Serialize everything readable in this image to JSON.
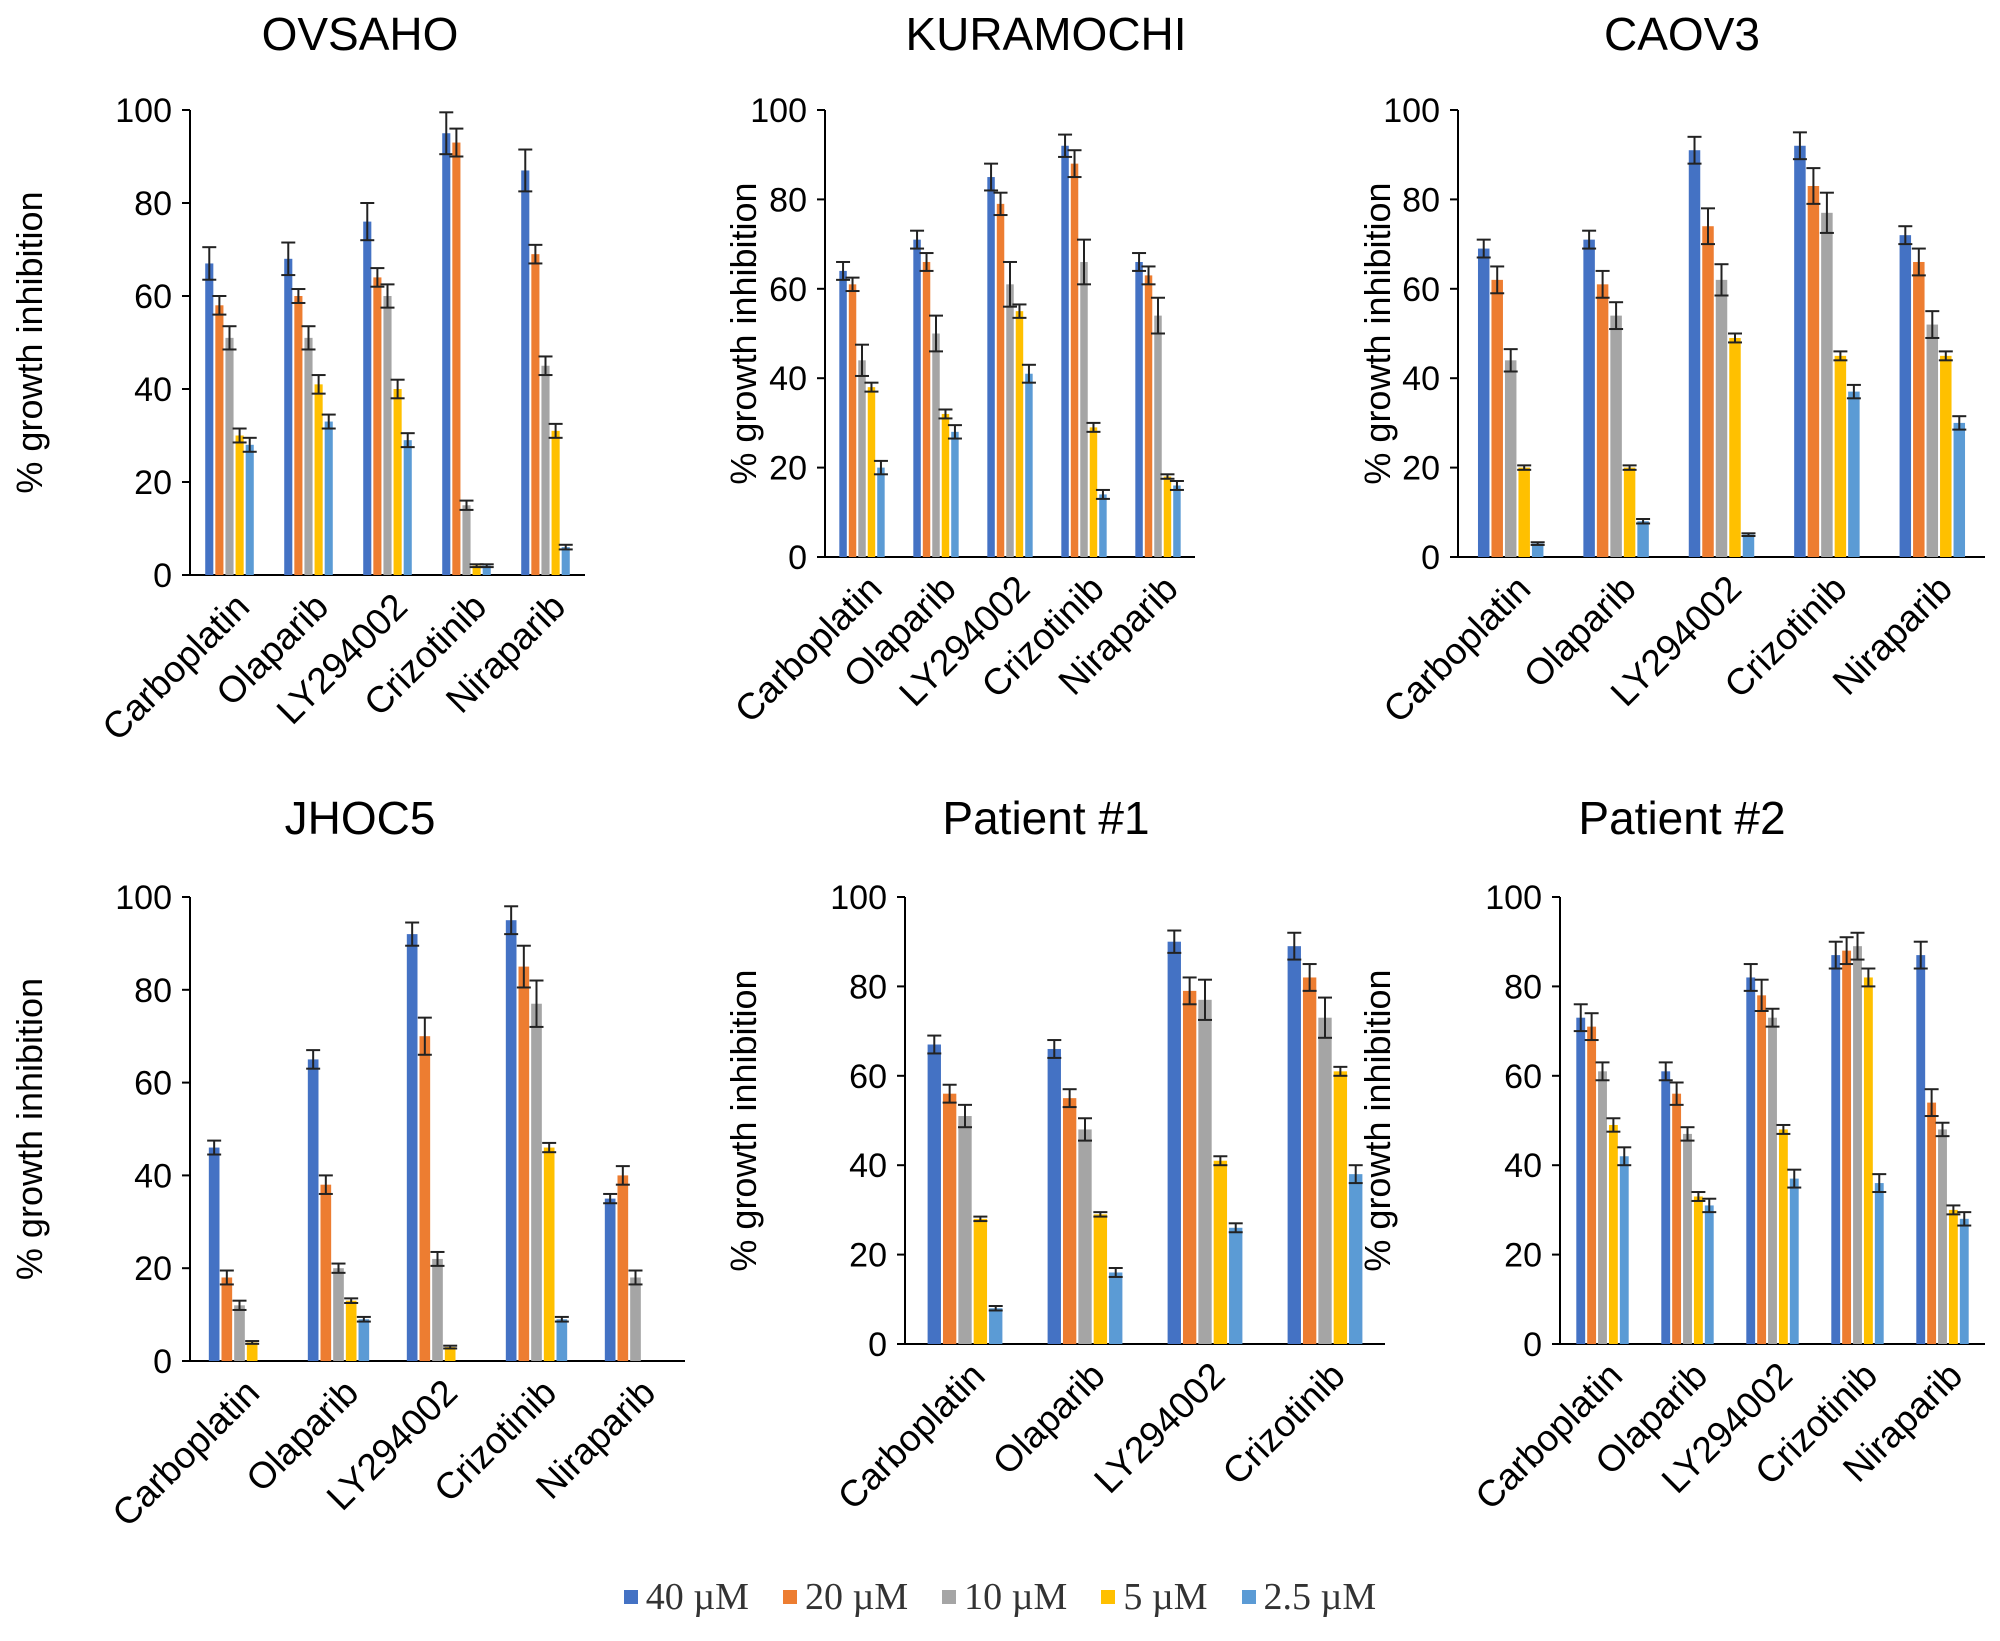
{
  "y_axis_label": "% growth inhibition",
  "legend": [
    {
      "label": "40 µM",
      "color": "#4472C4"
    },
    {
      "label": "20 µM",
      "color": "#ED7D31"
    },
    {
      "label": "10 µM",
      "color": "#A5A5A5"
    },
    {
      "label": "5 µM",
      "color": "#FFC000"
    },
    {
      "label": "2.5 µM",
      "color": "#5B9BD5"
    }
  ],
  "chart_data": [
    {
      "type": "bar",
      "title": "OVSAHO",
      "ylabel": "% growth inhibition",
      "ylim": [
        0,
        100
      ],
      "yticks": [
        0,
        20,
        40,
        60,
        80,
        100
      ],
      "categories": [
        "Carboplatin",
        "Olaparib",
        "LY294002",
        "Crizotinib",
        "Niraparib"
      ],
      "series": [
        {
          "name": "40 µM",
          "values": [
            67,
            68,
            76,
            95,
            87
          ],
          "errors": [
            3.5,
            3.5,
            4,
            4.5,
            4.5
          ]
        },
        {
          "name": "20 µM",
          "values": [
            58,
            60,
            64,
            93,
            69
          ],
          "errors": [
            2,
            1.5,
            2,
            3,
            2
          ]
        },
        {
          "name": "10 µM",
          "values": [
            51,
            51,
            60,
            15,
            45
          ],
          "errors": [
            2.5,
            2.5,
            2.5,
            1,
            2
          ]
        },
        {
          "name": "5 µM",
          "values": [
            30,
            41,
            40,
            2,
            31
          ],
          "errors": [
            1.5,
            2,
            2,
            0.3,
            1.5
          ]
        },
        {
          "name": "2.5 µM",
          "values": [
            28,
            33,
            29,
            2,
            6
          ],
          "errors": [
            1.5,
            1.5,
            1.5,
            0.3,
            0.5
          ]
        }
      ]
    },
    {
      "type": "bar",
      "title": "KURAMOCHI",
      "ylabel": "% growth inhibition",
      "ylim": [
        0,
        100
      ],
      "yticks": [
        0,
        20,
        40,
        60,
        80,
        100
      ],
      "categories": [
        "Carboplatin",
        "Olaparib",
        "LY294002",
        "Crizotinib",
        "Niraparib"
      ],
      "series": [
        {
          "name": "40 µM",
          "values": [
            64,
            71,
            85,
            92,
            66
          ],
          "errors": [
            2,
            2,
            3,
            2.5,
            2
          ]
        },
        {
          "name": "20 µM",
          "values": [
            61,
            66,
            79,
            88,
            63
          ],
          "errors": [
            1.5,
            2,
            2.5,
            3,
            2
          ]
        },
        {
          "name": "10 µM",
          "values": [
            44,
            50,
            61,
            66,
            54
          ],
          "errors": [
            3.5,
            4,
            5,
            5,
            4
          ]
        },
        {
          "name": "5 µM",
          "values": [
            38,
            32,
            55,
            29,
            18
          ],
          "errors": [
            1,
            1,
            1.5,
            1,
            0.5
          ]
        },
        {
          "name": "2.5 µM",
          "values": [
            20,
            28,
            41,
            14,
            16
          ],
          "errors": [
            1.5,
            1.5,
            2,
            1,
            1
          ]
        }
      ]
    },
    {
      "type": "bar",
      "title": "CAOV3",
      "ylabel": "% growth inhibition",
      "ylim": [
        0,
        100
      ],
      "yticks": [
        0,
        20,
        40,
        60,
        80,
        100
      ],
      "categories": [
        "Carboplatin",
        "Olaparib",
        "LY294002",
        "Crizotinib",
        "Niraparib"
      ],
      "series": [
        {
          "name": "40 µM",
          "values": [
            69,
            71,
            91,
            92,
            72
          ],
          "errors": [
            2,
            2,
            3,
            3,
            2
          ]
        },
        {
          "name": "20 µM",
          "values": [
            62,
            61,
            74,
            83,
            66
          ],
          "errors": [
            3,
            3,
            4,
            4,
            3
          ]
        },
        {
          "name": "10 µM",
          "values": [
            44,
            54,
            62,
            77,
            52
          ],
          "errors": [
            2.5,
            3,
            3.5,
            4.5,
            3
          ]
        },
        {
          "name": "5 µM",
          "values": [
            20,
            20,
            49,
            45,
            45
          ],
          "errors": [
            0.5,
            0.5,
            1,
            1,
            1
          ]
        },
        {
          "name": "2.5 µM",
          "values": [
            3,
            8,
            5,
            37,
            30
          ],
          "errors": [
            0.3,
            0.5,
            0.3,
            1.5,
            1.5
          ]
        }
      ]
    },
    {
      "type": "bar",
      "title": "JHOC5",
      "ylabel": "% growth inhibition",
      "ylim": [
        0,
        100
      ],
      "yticks": [
        0,
        20,
        40,
        60,
        80,
        100
      ],
      "categories": [
        "Carboplatin",
        "Olaparib",
        "LY294002",
        "Crizotinib",
        "Niraparib"
      ],
      "series": [
        {
          "name": "40 µM",
          "values": [
            46,
            65,
            92,
            95,
            35
          ],
          "errors": [
            1.5,
            2,
            2.5,
            3,
            1
          ]
        },
        {
          "name": "20 µM",
          "values": [
            18,
            38,
            70,
            85,
            40
          ],
          "errors": [
            1.5,
            2,
            4,
            4.5,
            2
          ]
        },
        {
          "name": "10 µM",
          "values": [
            12,
            20,
            22,
            77,
            18
          ],
          "errors": [
            1,
            1,
            1.5,
            5,
            1.5
          ]
        },
        {
          "name": "5 µM",
          "values": [
            4,
            13,
            3,
            46,
            0
          ],
          "errors": [
            0.3,
            0.5,
            0.3,
            1,
            0
          ]
        },
        {
          "name": "2.5 µM",
          "values": [
            0,
            9,
            0,
            9,
            0
          ],
          "errors": [
            0,
            0.5,
            0,
            0.5,
            0
          ]
        }
      ]
    },
    {
      "type": "bar",
      "title": "Patient #1",
      "ylabel": "% growth inhibition",
      "ylim": [
        0,
        100
      ],
      "yticks": [
        0,
        20,
        40,
        60,
        80,
        100
      ],
      "categories": [
        "Carboplatin",
        "Olaparib",
        "LY294002",
        "Crizotinib"
      ],
      "series": [
        {
          "name": "40 µM",
          "values": [
            67,
            66,
            90,
            89
          ],
          "errors": [
            2,
            2,
            2.5,
            3
          ]
        },
        {
          "name": "20 µM",
          "values": [
            56,
            55,
            79,
            82
          ],
          "errors": [
            2,
            2,
            3,
            3
          ]
        },
        {
          "name": "10 µM",
          "values": [
            51,
            48,
            77,
            73
          ],
          "errors": [
            2.5,
            2.5,
            4.5,
            4.5
          ]
        },
        {
          "name": "5 µM",
          "values": [
            28,
            29,
            41,
            61
          ],
          "errors": [
            0.5,
            0.5,
            1,
            1
          ]
        },
        {
          "name": "2.5 µM",
          "values": [
            8,
            16,
            26,
            38
          ],
          "errors": [
            0.5,
            1,
            1,
            2
          ]
        }
      ]
    },
    {
      "type": "bar",
      "title": "Patient #2",
      "ylabel": "% growth inhibition",
      "ylim": [
        0,
        100
      ],
      "yticks": [
        0,
        20,
        40,
        60,
        80,
        100
      ],
      "categories": [
        "Carboplatin",
        "Olaparib",
        "LY294002",
        "Crizotinib",
        "Niraparib"
      ],
      "series": [
        {
          "name": "40 µM",
          "values": [
            73,
            61,
            82,
            87,
            87
          ],
          "errors": [
            3,
            2,
            3,
            3,
            3
          ]
        },
        {
          "name": "20 µM",
          "values": [
            71,
            56,
            78,
            88,
            54
          ],
          "errors": [
            3,
            2.5,
            3.5,
            3,
            3
          ]
        },
        {
          "name": "10 µM",
          "values": [
            61,
            47,
            73,
            89,
            48
          ],
          "errors": [
            2,
            1.5,
            2,
            3,
            1.5
          ]
        },
        {
          "name": "5 µM",
          "values": [
            49,
            33,
            48,
            82,
            30
          ],
          "errors": [
            1.5,
            1,
            1,
            2,
            1
          ]
        },
        {
          "name": "2.5 µM",
          "values": [
            42,
            31,
            37,
            36,
            28
          ],
          "errors": [
            2,
            1.5,
            2,
            2,
            1.5
          ]
        }
      ]
    }
  ]
}
